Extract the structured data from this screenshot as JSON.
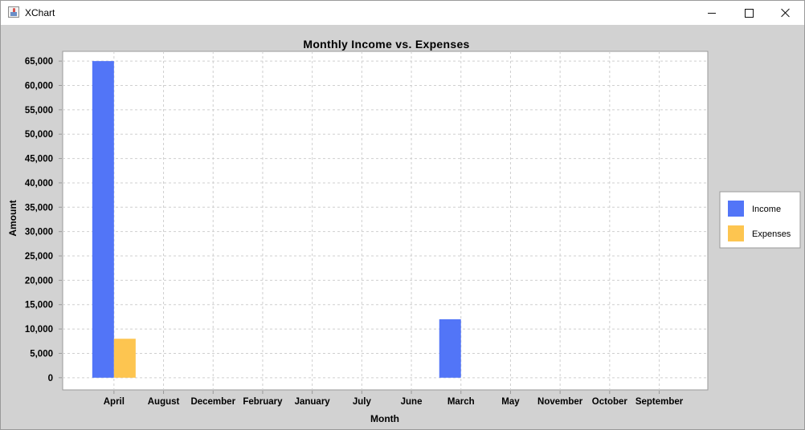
{
  "window": {
    "title": "XChart",
    "icon": "java-app-icon"
  },
  "chart_data": {
    "type": "bar",
    "title": "Monthly Income vs. Expenses",
    "xlabel": "Month",
    "ylabel": "Amount",
    "categories": [
      "April",
      "August",
      "December",
      "February",
      "January",
      "July",
      "June",
      "March",
      "May",
      "November",
      "October",
      "September"
    ],
    "series": [
      {
        "name": "Income",
        "color": "#5275f7",
        "values": [
          65000,
          null,
          null,
          null,
          null,
          null,
          null,
          12000,
          null,
          null,
          null,
          null
        ]
      },
      {
        "name": "Expenses",
        "color": "#fdc550",
        "values": [
          8000,
          null,
          null,
          null,
          null,
          null,
          null,
          null,
          null,
          null,
          null,
          null
        ]
      }
    ],
    "yticks": [
      "0",
      "5,000",
      "10,000",
      "15,000",
      "20,000",
      "25,000",
      "30,000",
      "35,000",
      "40,000",
      "45,000",
      "50,000",
      "55,000",
      "60,000",
      "65,000"
    ],
    "ylim": [
      -2500,
      67000
    ],
    "grid": true,
    "legend_position": "right"
  }
}
